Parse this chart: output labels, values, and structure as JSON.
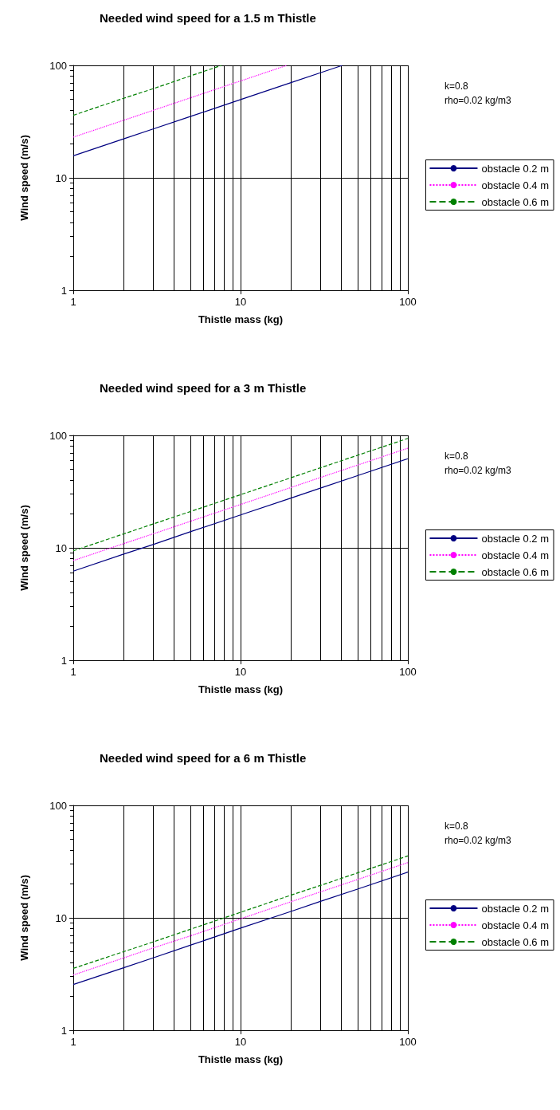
{
  "chart_data": [
    {
      "type": "line",
      "title": "Needed wind speed for a 1.5 m Thistle",
      "xlabel": "Thistle mass (kg)",
      "ylabel": "Wind speed (m/s)",
      "log": "xy",
      "xlim": [
        1,
        100
      ],
      "ylim": [
        1,
        100
      ],
      "xticks": [
        1,
        10,
        100
      ],
      "yticks": [
        1,
        10,
        100
      ],
      "grid": true,
      "legend": "right",
      "marker": "none",
      "annotations": [
        "k=0.8",
        "rho=0.02 kg/m3"
      ],
      "series": [
        {
          "name": "obstacle 0.2 m",
          "color": "#000080",
          "line_style": "solid",
          "x": [
            1,
            2,
            3,
            5,
            7,
            10,
            20,
            30,
            40.6
          ],
          "values": [
            15.7,
            22.2,
            27.2,
            35.1,
            41.5,
            49.6,
            70.2,
            86,
            100
          ]
        },
        {
          "name": "obstacle 0.4 m",
          "color": "#ff00ff",
          "line_style": "dotted",
          "x": [
            1,
            2,
            3,
            5,
            7,
            10,
            18.9
          ],
          "values": [
            23,
            32.5,
            39.8,
            51.4,
            60.9,
            72.7,
            100
          ]
        },
        {
          "name": "obstacle 0.6 m",
          "color": "#008000",
          "line_style": "dashed",
          "x": [
            1,
            2,
            3,
            5,
            7.7
          ],
          "values": [
            36,
            51,
            62,
            80.5,
            100
          ]
        }
      ]
    },
    {
      "type": "line",
      "title": "Needed wind speed for a 3 m Thistle",
      "xlabel": "Thistle mass (kg)",
      "ylabel": "Wind speed (m/s)",
      "log": "xy",
      "xlim": [
        1,
        100
      ],
      "ylim": [
        1,
        100
      ],
      "xticks": [
        1,
        10,
        100
      ],
      "yticks": [
        1,
        10,
        100
      ],
      "grid": true,
      "legend": "right",
      "marker": "none",
      "annotations": [
        "k=0.8",
        "rho=0.02 kg/m3"
      ],
      "x": [
        1,
        2,
        3,
        5,
        10,
        20,
        30,
        50,
        100
      ],
      "series": [
        {
          "name": "obstacle 0.2 m",
          "color": "#000080",
          "line_style": "solid",
          "values": [
            6.2,
            8.8,
            10.7,
            13.9,
            19.6,
            27.7,
            34,
            43.8,
            62
          ]
        },
        {
          "name": "obstacle 0.4 m",
          "color": "#ff00ff",
          "line_style": "dotted",
          "values": [
            7.7,
            10.9,
            13.3,
            17.2,
            24.3,
            34.4,
            42.2,
            54.4,
            77
          ]
        },
        {
          "name": "obstacle 0.6 m",
          "color": "#008000",
          "line_style": "dashed",
          "values": [
            9.4,
            13.3,
            16.3,
            21,
            29.7,
            42,
            51.5,
            66.5,
            94
          ]
        }
      ]
    },
    {
      "type": "line",
      "title": "Needed wind speed for a 6 m Thistle",
      "xlabel": "Thistle mass (kg)",
      "ylabel": "Wind speed (m/s)",
      "log": "xy",
      "xlim": [
        1,
        100
      ],
      "ylim": [
        1,
        100
      ],
      "xticks": [
        1,
        10,
        100
      ],
      "yticks": [
        1,
        10,
        100
      ],
      "grid": true,
      "legend": "right",
      "marker": "none",
      "annotations": [
        "k=0.8",
        "rho=0.02 kg/m3"
      ],
      "x": [
        1,
        2,
        3,
        5,
        10,
        20,
        30,
        50,
        100
      ],
      "series": [
        {
          "name": "obstacle 0.2 m",
          "color": "#000080",
          "line_style": "solid",
          "values": [
            2.55,
            3.6,
            4.4,
            5.7,
            8.1,
            11.4,
            14,
            18,
            25.5
          ]
        },
        {
          "name": "obstacle 0.4 m",
          "color": "#ff00ff",
          "line_style": "dotted",
          "values": [
            3.1,
            4.4,
            5.4,
            6.9,
            9.8,
            13.9,
            17,
            21.9,
            31
          ]
        },
        {
          "name": "obstacle 0.6 m",
          "color": "#008000",
          "line_style": "dashed",
          "values": [
            3.55,
            5,
            6.1,
            7.9,
            11.2,
            15.9,
            19.4,
            25.1,
            35.5
          ]
        }
      ]
    }
  ]
}
